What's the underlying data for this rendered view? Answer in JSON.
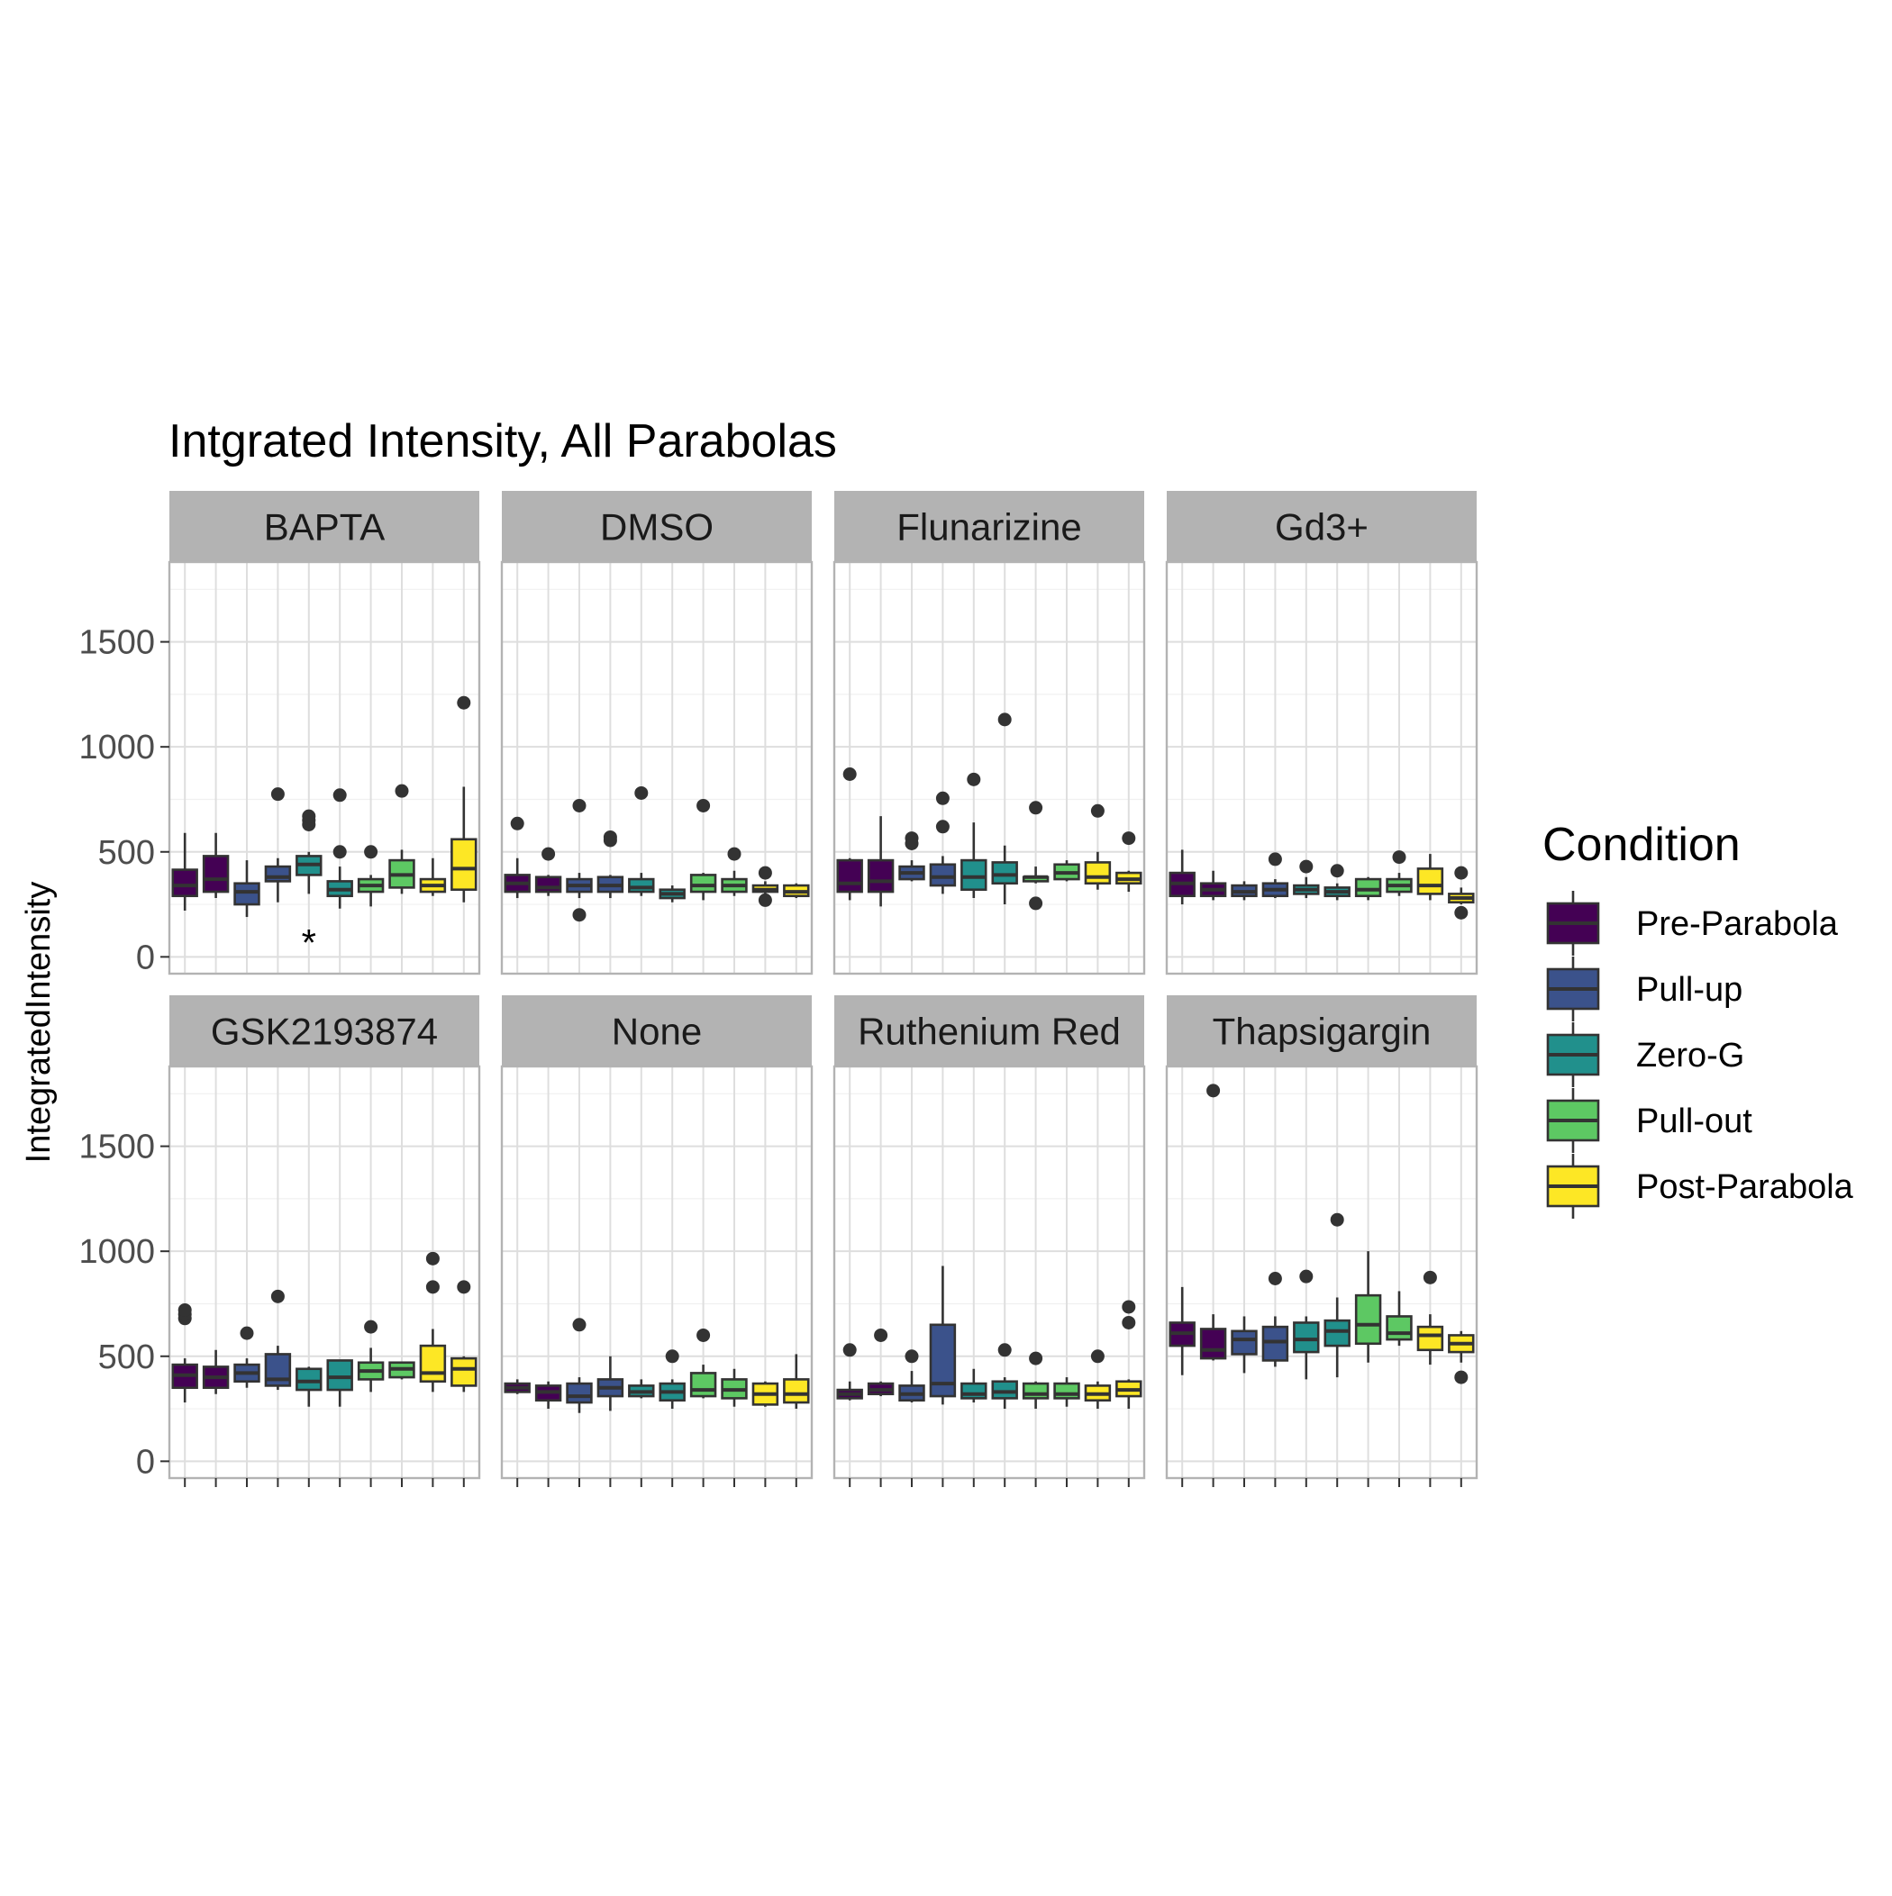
{
  "chart_data": {
    "type": "boxplot",
    "title": "Intgrated Intensity, All Parabolas",
    "ylabel": "IntegratedIntensity",
    "xlabel": "",
    "ylim": [
      -80,
      1880
    ],
    "yticks": [
      0,
      500,
      1000,
      1500
    ],
    "grid": true,
    "legend": {
      "title": "Condition",
      "position": "right",
      "entries": [
        "Pre-Parabola",
        "Pull-up",
        "Zero-G",
        "Pull-out",
        "Post-Parabola"
      ]
    },
    "colors": {
      "Pre-Parabola": "#440154",
      "Pull-up": "#3b528b",
      "Zero-G": "#21908c",
      "Pull-out": "#5dc863",
      "Post-Parabola": "#fde725"
    },
    "box_order": [
      "Pre-Parabola",
      "Pre-Parabola",
      "Pull-up",
      "Pull-up",
      "Zero-G",
      "Zero-G",
      "Pull-out",
      "Pull-out",
      "Post-Parabola",
      "Post-Parabola"
    ],
    "panels": [
      {
        "name": "BAPTA",
        "annotation": {
          "text": "*",
          "box_index": 4,
          "y": 100
        },
        "boxes": [
          {
            "lw": 220,
            "q1": 290,
            "med": 340,
            "q3": 415,
            "uw": 590,
            "out": []
          },
          {
            "lw": 280,
            "q1": 310,
            "med": 370,
            "q3": 480,
            "uw": 590,
            "out": []
          },
          {
            "lw": 190,
            "q1": 250,
            "med": 310,
            "q3": 350,
            "uw": 460,
            "out": []
          },
          {
            "lw": 260,
            "q1": 360,
            "med": 380,
            "q3": 430,
            "uw": 470,
            "out": [
              775
            ]
          },
          {
            "lw": 300,
            "q1": 390,
            "med": 440,
            "q3": 480,
            "uw": 500,
            "out": [
              630,
              650,
              670
            ]
          },
          {
            "lw": 230,
            "q1": 290,
            "med": 320,
            "q3": 360,
            "uw": 430,
            "out": [
              500,
              770
            ]
          },
          {
            "lw": 240,
            "q1": 310,
            "med": 340,
            "q3": 370,
            "uw": 390,
            "out": [
              500
            ]
          },
          {
            "lw": 300,
            "q1": 330,
            "med": 390,
            "q3": 460,
            "uw": 510,
            "out": [
              790
            ]
          },
          {
            "lw": 290,
            "q1": 310,
            "med": 340,
            "q3": 370,
            "uw": 470,
            "out": []
          },
          {
            "lw": 260,
            "q1": 320,
            "med": 420,
            "q3": 560,
            "uw": 810,
            "out": [
              1210
            ]
          }
        ]
      },
      {
        "name": "DMSO",
        "boxes": [
          {
            "lw": 280,
            "q1": 310,
            "med": 350,
            "q3": 390,
            "uw": 470,
            "out": [
              635
            ]
          },
          {
            "lw": 290,
            "q1": 310,
            "med": 330,
            "q3": 380,
            "uw": 390,
            "out": [
              490
            ]
          },
          {
            "lw": 280,
            "q1": 310,
            "med": 340,
            "q3": 370,
            "uw": 400,
            "out": [
              200,
              720
            ]
          },
          {
            "lw": 280,
            "q1": 310,
            "med": 340,
            "q3": 380,
            "uw": 390,
            "out": [
              555,
              570
            ]
          },
          {
            "lw": 290,
            "q1": 310,
            "med": 330,
            "q3": 370,
            "uw": 400,
            "out": [
              780
            ]
          },
          {
            "lw": 260,
            "q1": 280,
            "med": 300,
            "q3": 320,
            "uw": 340,
            "out": []
          },
          {
            "lw": 270,
            "q1": 310,
            "med": 340,
            "q3": 390,
            "uw": 400,
            "out": [
              720
            ]
          },
          {
            "lw": 290,
            "q1": 310,
            "med": 340,
            "q3": 370,
            "uw": 410,
            "out": [
              490
            ]
          },
          {
            "lw": 300,
            "q1": 310,
            "med": 320,
            "q3": 340,
            "uw": 360,
            "out": [
              270,
              400
            ]
          },
          {
            "lw": 280,
            "q1": 290,
            "med": 310,
            "q3": 340,
            "uw": 350,
            "out": []
          }
        ]
      },
      {
        "name": "Flunarizine",
        "boxes": [
          {
            "lw": 270,
            "q1": 310,
            "med": 350,
            "q3": 460,
            "uw": 470,
            "out": [
              870
            ]
          },
          {
            "lw": 240,
            "q1": 310,
            "med": 360,
            "q3": 460,
            "uw": 670,
            "out": []
          },
          {
            "lw": 360,
            "q1": 370,
            "med": 400,
            "q3": 430,
            "uw": 460,
            "out": [
              540,
              565
            ]
          },
          {
            "lw": 300,
            "q1": 340,
            "med": 380,
            "q3": 440,
            "uw": 480,
            "out": [
              620,
              755
            ]
          },
          {
            "lw": 280,
            "q1": 320,
            "med": 380,
            "q3": 460,
            "uw": 640,
            "out": [
              845
            ]
          },
          {
            "lw": 250,
            "q1": 350,
            "med": 390,
            "q3": 450,
            "uw": 530,
            "out": [
              1130
            ]
          },
          {
            "lw": 350,
            "q1": 360,
            "med": 380,
            "q3": 380,
            "uw": 430,
            "out": [
              255,
              710
            ]
          },
          {
            "lw": 360,
            "q1": 370,
            "med": 400,
            "q3": 440,
            "uw": 460,
            "out": []
          },
          {
            "lw": 320,
            "q1": 350,
            "med": 380,
            "q3": 450,
            "uw": 500,
            "out": [
              695
            ]
          },
          {
            "lw": 310,
            "q1": 350,
            "med": 370,
            "q3": 400,
            "uw": 410,
            "out": [
              565
            ]
          }
        ]
      },
      {
        "name": "Gd3+",
        "boxes": [
          {
            "lw": 250,
            "q1": 290,
            "med": 350,
            "q3": 400,
            "uw": 510,
            "out": []
          },
          {
            "lw": 270,
            "q1": 290,
            "med": 320,
            "q3": 350,
            "uw": 410,
            "out": []
          },
          {
            "lw": 270,
            "q1": 290,
            "med": 310,
            "q3": 340,
            "uw": 360,
            "out": []
          },
          {
            "lw": 280,
            "q1": 290,
            "med": 320,
            "q3": 350,
            "uw": 370,
            "out": [
              465
            ]
          },
          {
            "lw": 280,
            "q1": 300,
            "med": 320,
            "q3": 340,
            "uw": 380,
            "out": [
              430
            ]
          },
          {
            "lw": 270,
            "q1": 290,
            "med": 310,
            "q3": 330,
            "uw": 350,
            "out": [
              410
            ]
          },
          {
            "lw": 270,
            "q1": 290,
            "med": 320,
            "q3": 370,
            "uw": 380,
            "out": []
          },
          {
            "lw": 290,
            "q1": 310,
            "med": 340,
            "q3": 370,
            "uw": 400,
            "out": [
              475
            ]
          },
          {
            "lw": 270,
            "q1": 300,
            "med": 340,
            "q3": 420,
            "uw": 490,
            "out": []
          },
          {
            "lw": 250,
            "q1": 260,
            "med": 280,
            "q3": 300,
            "uw": 330,
            "out": [
              210,
              400
            ]
          }
        ]
      },
      {
        "name": "GSK2193874",
        "boxes": [
          {
            "lw": 280,
            "q1": 350,
            "med": 410,
            "q3": 460,
            "uw": 490,
            "out": [
              680,
              700,
              720
            ]
          },
          {
            "lw": 320,
            "q1": 350,
            "med": 400,
            "q3": 450,
            "uw": 530,
            "out": []
          },
          {
            "lw": 350,
            "q1": 380,
            "med": 420,
            "q3": 460,
            "uw": 490,
            "out": [
              610
            ]
          },
          {
            "lw": 340,
            "q1": 360,
            "med": 390,
            "q3": 510,
            "uw": 550,
            "out": [
              785
            ]
          },
          {
            "lw": 260,
            "q1": 340,
            "med": 380,
            "q3": 440,
            "uw": 450,
            "out": []
          },
          {
            "lw": 260,
            "q1": 340,
            "med": 400,
            "q3": 480,
            "uw": 480,
            "out": []
          },
          {
            "lw": 330,
            "q1": 390,
            "med": 430,
            "q3": 470,
            "uw": 540,
            "out": [
              640
            ]
          },
          {
            "lw": 390,
            "q1": 400,
            "med": 440,
            "q3": 470,
            "uw": 470,
            "out": []
          },
          {
            "lw": 330,
            "q1": 380,
            "med": 420,
            "q3": 550,
            "uw": 630,
            "out": [
              830,
              965
            ]
          },
          {
            "lw": 330,
            "q1": 360,
            "med": 440,
            "q3": 490,
            "uw": 500,
            "out": [
              830
            ]
          }
        ]
      },
      {
        "name": "None",
        "boxes": [
          {
            "lw": 320,
            "q1": 330,
            "med": 350,
            "q3": 370,
            "uw": 390,
            "out": []
          },
          {
            "lw": 250,
            "q1": 290,
            "med": 330,
            "q3": 360,
            "uw": 380,
            "out": []
          },
          {
            "lw": 230,
            "q1": 280,
            "med": 310,
            "q3": 370,
            "uw": 400,
            "out": [
              650
            ]
          },
          {
            "lw": 240,
            "q1": 310,
            "med": 350,
            "q3": 390,
            "uw": 500,
            "out": []
          },
          {
            "lw": 300,
            "q1": 310,
            "med": 330,
            "q3": 360,
            "uw": 390,
            "out": []
          },
          {
            "lw": 250,
            "q1": 290,
            "med": 330,
            "q3": 370,
            "uw": 390,
            "out": [
              500
            ]
          },
          {
            "lw": 300,
            "q1": 310,
            "med": 340,
            "q3": 420,
            "uw": 460,
            "out": [
              600
            ]
          },
          {
            "lw": 260,
            "q1": 300,
            "med": 340,
            "q3": 390,
            "uw": 440,
            "out": []
          },
          {
            "lw": 260,
            "q1": 270,
            "med": 320,
            "q3": 370,
            "uw": 380,
            "out": []
          },
          {
            "lw": 250,
            "q1": 280,
            "med": 320,
            "q3": 390,
            "uw": 510,
            "out": []
          }
        ]
      },
      {
        "name": "Ruthenium Red",
        "boxes": [
          {
            "lw": 290,
            "q1": 300,
            "med": 320,
            "q3": 340,
            "uw": 380,
            "out": [
              530
            ]
          },
          {
            "lw": 310,
            "q1": 320,
            "med": 340,
            "q3": 370,
            "uw": 380,
            "out": [
              600
            ]
          },
          {
            "lw": 280,
            "q1": 290,
            "med": 320,
            "q3": 360,
            "uw": 430,
            "out": [
              500
            ]
          },
          {
            "lw": 270,
            "q1": 310,
            "med": 370,
            "q3": 650,
            "uw": 930,
            "out": []
          },
          {
            "lw": 280,
            "q1": 300,
            "med": 320,
            "q3": 370,
            "uw": 440,
            "out": []
          },
          {
            "lw": 250,
            "q1": 300,
            "med": 330,
            "q3": 380,
            "uw": 400,
            "out": [
              530
            ]
          },
          {
            "lw": 250,
            "q1": 300,
            "med": 320,
            "q3": 370,
            "uw": 380,
            "out": [
              490
            ]
          },
          {
            "lw": 260,
            "q1": 300,
            "med": 320,
            "q3": 370,
            "uw": 400,
            "out": []
          },
          {
            "lw": 250,
            "q1": 290,
            "med": 320,
            "q3": 360,
            "uw": 380,
            "out": [
              500
            ]
          },
          {
            "lw": 250,
            "q1": 310,
            "med": 340,
            "q3": 380,
            "uw": 390,
            "out": [
              660,
              735
            ]
          }
        ]
      },
      {
        "name": "Thapsigargin",
        "boxes": [
          {
            "lw": 410,
            "q1": 550,
            "med": 610,
            "q3": 660,
            "uw": 830,
            "out": []
          },
          {
            "lw": 480,
            "q1": 490,
            "med": 530,
            "q3": 630,
            "uw": 700,
            "out": [
              1765
            ]
          },
          {
            "lw": 420,
            "q1": 510,
            "med": 580,
            "q3": 620,
            "uw": 690,
            "out": []
          },
          {
            "lw": 450,
            "q1": 480,
            "med": 570,
            "q3": 640,
            "uw": 690,
            "out": [
              870
            ]
          },
          {
            "lw": 390,
            "q1": 520,
            "med": 580,
            "q3": 660,
            "uw": 690,
            "out": [
              880
            ]
          },
          {
            "lw": 400,
            "q1": 550,
            "med": 620,
            "q3": 670,
            "uw": 780,
            "out": [
              1150
            ]
          },
          {
            "lw": 470,
            "q1": 560,
            "med": 650,
            "q3": 790,
            "uw": 1000,
            "out": []
          },
          {
            "lw": 550,
            "q1": 580,
            "med": 610,
            "q3": 690,
            "uw": 810,
            "out": []
          },
          {
            "lw": 460,
            "q1": 530,
            "med": 600,
            "q3": 640,
            "uw": 700,
            "out": [
              875
            ]
          },
          {
            "lw": 470,
            "q1": 520,
            "med": 560,
            "q3": 600,
            "uw": 620,
            "out": [
              400
            ]
          }
        ]
      }
    ]
  }
}
